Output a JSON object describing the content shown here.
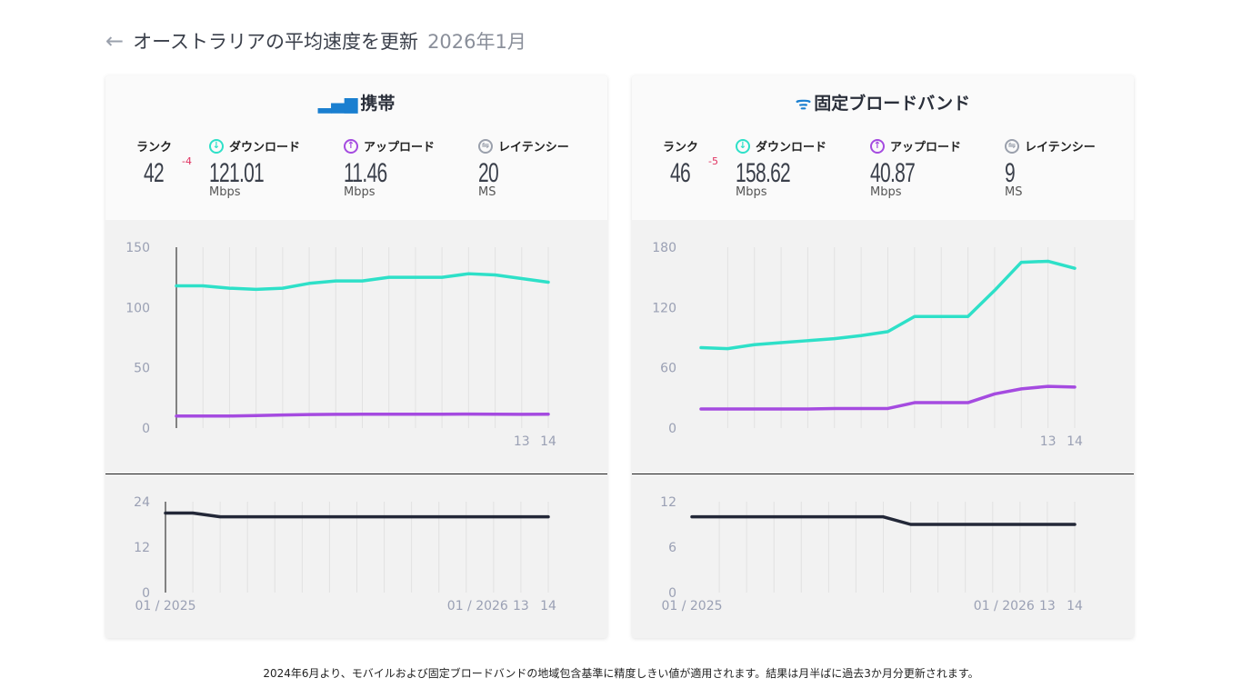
{
  "header": {
    "title": "オーストラリアの平均速度を更新",
    "date": "2026年1月"
  },
  "colors": {
    "download": "#2ee0c8",
    "upload": "#a54be0",
    "latency": "#232838",
    "accent": "#1a7fd0",
    "rank_delta": "#e0305f"
  },
  "cards": [
    {
      "title": "携帯",
      "icon": "signal-bars-icon",
      "rank": {
        "label": "ランク",
        "value": "42",
        "delta": "-4"
      },
      "download": {
        "label": "ダウンロード",
        "value": "121.01",
        "unit": "Mbps"
      },
      "upload": {
        "label": "アップロード",
        "value": "11.46",
        "unit": "Mbps"
      },
      "latency": {
        "label": "レイテンシー",
        "value": "20",
        "unit": "MS"
      }
    },
    {
      "title": "固定ブロードバンド",
      "icon": "wifi-icon",
      "rank": {
        "label": "ランク",
        "value": "46",
        "delta": "-5"
      },
      "download": {
        "label": "ダウンロード",
        "value": "158.62",
        "unit": "Mbps"
      },
      "upload": {
        "label": "アップロード",
        "value": "40.87",
        "unit": "Mbps"
      },
      "latency": {
        "label": "レイテンシー",
        "value": "9",
        "unit": "MS"
      }
    }
  ],
  "chart_data": [
    {
      "type": "line",
      "title": "携帯 speed",
      "ylim": [
        0,
        150
      ],
      "yticks": [
        "0",
        "50",
        "100",
        "150"
      ],
      "xtick_labels": [
        {
          "index": 13,
          "label": "13"
        },
        {
          "index": 14,
          "label": "14"
        }
      ],
      "series": [
        {
          "key": "download",
          "values": [
            118,
            118,
            116,
            115,
            116,
            120,
            122,
            122,
            125,
            125,
            125,
            128,
            127,
            124,
            121
          ]
        },
        {
          "key": "upload",
          "values": [
            10,
            10,
            10,
            10.4,
            10.8,
            11.2,
            11.4,
            11.5,
            11.5,
            11.5,
            11.5,
            11.6,
            11.5,
            11.4,
            11.46
          ]
        }
      ]
    },
    {
      "type": "line",
      "title": "携帯 latency",
      "ylim": [
        0,
        24
      ],
      "yticks": [
        "0",
        "12",
        "24"
      ],
      "xtick_labels": [
        {
          "index": 0,
          "label": "01 / 2025"
        },
        {
          "index": 12,
          "label": "01 / 2026"
        },
        {
          "index": 13,
          "label": "13"
        },
        {
          "index": 14,
          "label": "14"
        }
      ],
      "series": [
        {
          "key": "latency",
          "values": [
            21,
            21,
            20,
            20,
            20,
            20,
            20,
            20,
            20,
            20,
            20,
            20,
            20,
            20,
            20
          ]
        }
      ]
    },
    {
      "type": "line",
      "title": "固定ブロードバンド speed",
      "ylim": [
        0,
        180
      ],
      "yticks": [
        "0",
        "60",
        "120",
        "180"
      ],
      "xtick_labels": [
        {
          "index": 13,
          "label": "13"
        },
        {
          "index": 14,
          "label": "14"
        }
      ],
      "series": [
        {
          "key": "download",
          "values": [
            80,
            79,
            83,
            85,
            87,
            89,
            92,
            96,
            111,
            111,
            111,
            137,
            165,
            166,
            159
          ]
        },
        {
          "key": "upload",
          "values": [
            19,
            19,
            19,
            19,
            19,
            19.5,
            19.5,
            19.5,
            25.3,
            25.3,
            25.3,
            34,
            39,
            41.5,
            40.87
          ]
        }
      ]
    },
    {
      "type": "line",
      "title": "固定ブロードバンド latency",
      "ylim": [
        0,
        12
      ],
      "yticks": [
        "0",
        "6",
        "12"
      ],
      "xtick_labels": [
        {
          "index": 0,
          "label": "01 / 2025"
        },
        {
          "index": 12,
          "label": "01 / 2026"
        },
        {
          "index": 13,
          "label": "13"
        },
        {
          "index": 14,
          "label": "14"
        }
      ],
      "series": [
        {
          "key": "latency",
          "values": [
            10,
            10,
            10,
            10,
            10,
            10,
            10,
            10,
            9,
            9,
            9,
            9,
            9,
            9,
            9
          ]
        }
      ]
    }
  ],
  "footer": "2024年6月より、モバイルおよび固定ブロードバンドの地域包含基準に精度しきい値が適用されます。結果は月半ばに過去3か月分更新されます。"
}
